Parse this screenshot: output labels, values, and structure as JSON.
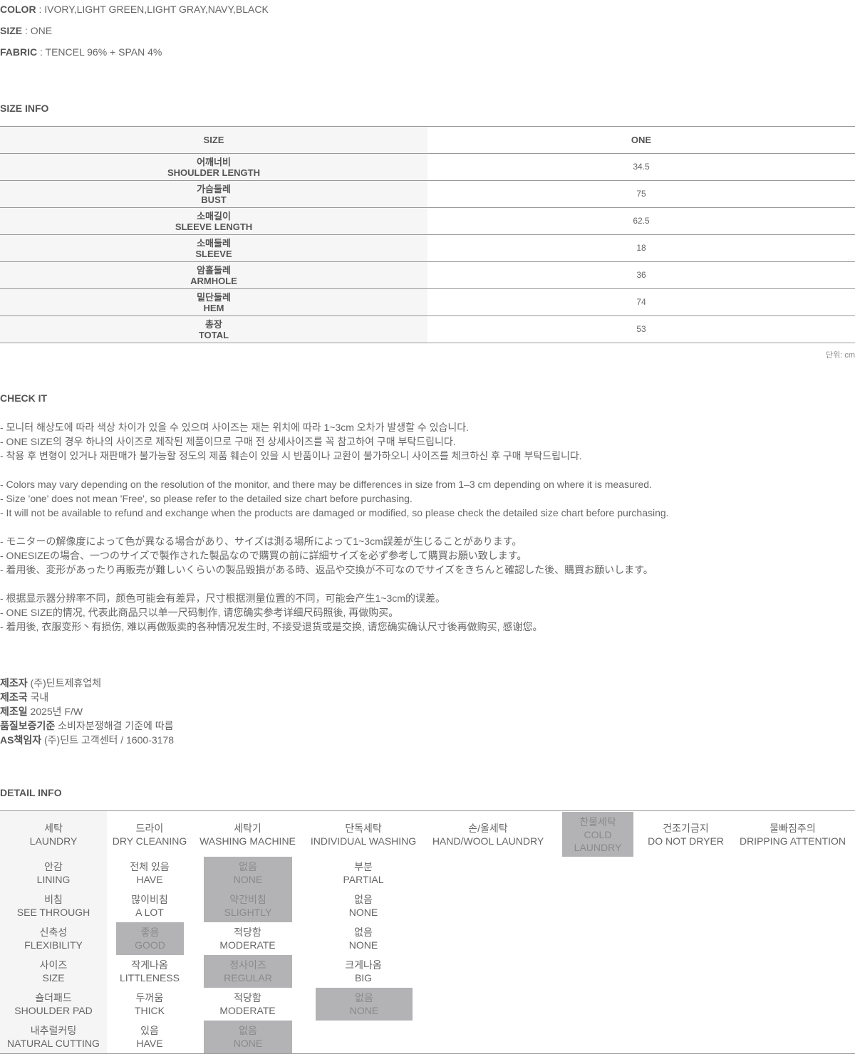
{
  "specs": [
    {
      "label": "COLOR",
      "value": " : IVORY,LIGHT GREEN,LIGHT GRAY,NAVY,BLACK"
    },
    {
      "label": "SIZE",
      "value": " : ONE"
    },
    {
      "label": "FABRIC",
      "value": " : TENCEL 96% + SPAN 4%"
    }
  ],
  "size_info": {
    "title": "SIZE INFO",
    "header": [
      "SIZE",
      "ONE"
    ],
    "rows": [
      {
        "ko": "어깨너비",
        "en": "SHOULDER LENGTH",
        "value": "34.5"
      },
      {
        "ko": "가슴둘레",
        "en": "BUST",
        "value": "75"
      },
      {
        "ko": "소매길이",
        "en": "SLEEVE LENGTH",
        "value": "62.5"
      },
      {
        "ko": "소매둘레",
        "en": "SLEEVE",
        "value": "18"
      },
      {
        "ko": "암홀둘레",
        "en": "ARMHOLE",
        "value": "36"
      },
      {
        "ko": "밑단둘레",
        "en": "HEM",
        "value": "74"
      },
      {
        "ko": "총장",
        "en": "TOTAL",
        "value": "53"
      }
    ],
    "unit": "단위: cm"
  },
  "check_it": {
    "title": "CHECK IT",
    "groups": [
      [
        "- 모니터 해상도에 따라 색상 차이가 있을 수 있으며 사이즈는 재는 위치에 따라 1~3cm 오차가 발생할 수 있습니다.",
        "- ONE SIZE의 경우 하나의 사이즈로 제작된 제품이므로 구매 전 상세사이즈를 꼭 참고하여 구매 부탁드립니다.",
        "- 착용 후 변형이 있거나 재판매가 불가능할 정도의 제품 훼손이 있을 시 반품이나 교환이 불가하오니 사이즈를 체크하신 후 구매 부탁드립니다."
      ],
      [
        "- Colors may vary depending on the resolution of the monitor, and there may be differences in size from 1–3 cm depending on where it is measured.",
        "- Size 'one' does not mean 'Free', so please refer to the detailed size chart before purchasing.",
        "- It will not be available to refund and exchange when the products are damaged or modified, so please check the detailed size chart before purchasing."
      ],
      [
        "- モニターの解像度によって色が異なる場合があり、サイズは測る場所によって1~3cm誤差が生じることがあります。",
        "- ONESIZEの場合、一つのサイズで製作された製品なので購買の前に詳細サイズを必ず参考して購買お願い致します。",
        "- 着用後、変形があったり再販売が難しいくらいの製品毀損がある時、返品や交換が不可なのでサイズをきちんと確認した後、購買お願いします。"
      ],
      [
        "- 根据显示器分辨率不同，颜色可能会有差异，尺寸根据测量位置的不同，可能会产生1~3cm的误差。",
        "- ONE SIZE的情况, 代表此商品只以单一尺码制作, 请您确实参考详细尺码照後, 再做购买。",
        "- 着用後, 衣服变形丶有损伤, 难以再做贩卖的各种情况发生时, 不接受退货或是交换, 请您确实确认尺寸後再做购买, 感谢您。"
      ]
    ]
  },
  "maker": [
    {
      "label": "제조자",
      "value": " (주)딘트제휴업체"
    },
    {
      "label": "제조국",
      "value": " 국내"
    },
    {
      "label": "제조일",
      "value": " 2025년 F/W"
    },
    {
      "label": "품질보증기준",
      "value": " 소비자분쟁해결 기준에 따름"
    },
    {
      "label": "AS책임자",
      "value": " (주)딘트 고객센터 / 1600-3178"
    }
  ],
  "detail_info": {
    "title": "DETAIL INFO",
    "highlight_color": "#b3b2b4",
    "header": [
      {
        "ko": "세탁",
        "en": "LAUNDRY"
      },
      {
        "ko": "드라이",
        "en": "DRY CLEANING"
      },
      {
        "ko": "세탁기",
        "en": "WASHING MACHINE"
      },
      {
        "ko": "단독세탁",
        "en": "INDIVIDUAL WASHING"
      },
      {
        "ko": "손/울세탁",
        "en": "HAND/WOOL LAUNDRY"
      },
      {
        "ko": "찬물세탁",
        "en": "COLD LAUNDRY",
        "selected": true
      },
      {
        "ko": "건조기금지",
        "en": "DO NOT DRYER"
      },
      {
        "ko": "물빠짐주의",
        "en": "DRIPPING ATTENTION"
      }
    ],
    "rows": [
      {
        "ko": "안감",
        "en": "LINING",
        "options": [
          {
            "ko": "전체 있음",
            "en": "HAVE"
          },
          {
            "ko": "없음",
            "en": "NONE",
            "selected": true
          },
          {
            "ko": "부분",
            "en": "PARTIAL"
          }
        ]
      },
      {
        "ko": "비침",
        "en": "SEE THROUGH",
        "options": [
          {
            "ko": "많이비침",
            "en": "A LOT"
          },
          {
            "ko": "약간비침",
            "en": "SLIGHTLY",
            "selected": true
          },
          {
            "ko": "없음",
            "en": "NONE"
          }
        ]
      },
      {
        "ko": "신축성",
        "en": "FLEXIBILITY",
        "options": [
          {
            "ko": "좋음",
            "en": "GOOD",
            "selected": true
          },
          {
            "ko": "적당함",
            "en": "MODERATE"
          },
          {
            "ko": "없음",
            "en": "NONE"
          }
        ]
      },
      {
        "ko": "사이즈",
        "en": "SIZE",
        "options": [
          {
            "ko": "작게나옴",
            "en": "LITTLENESS"
          },
          {
            "ko": "정사이즈",
            "en": "REGULAR",
            "selected": true
          },
          {
            "ko": "크게나옴",
            "en": "BIG"
          }
        ]
      },
      {
        "ko": "숄더패드",
        "en": "SHOULDER PAD",
        "options": [
          {
            "ko": "두꺼움",
            "en": "THICK"
          },
          {
            "ko": "적당함",
            "en": "MODERATE"
          },
          {
            "ko": "없음",
            "en": "NONE",
            "selected": true
          }
        ]
      },
      {
        "ko": "내추럴커팅",
        "en": "NATURAL CUTTING",
        "options": [
          {
            "ko": "있음",
            "en": "HAVE"
          },
          {
            "ko": "없음",
            "en": "NONE",
            "selected": true
          },
          {
            "ko": "",
            "en": ""
          }
        ]
      }
    ]
  }
}
